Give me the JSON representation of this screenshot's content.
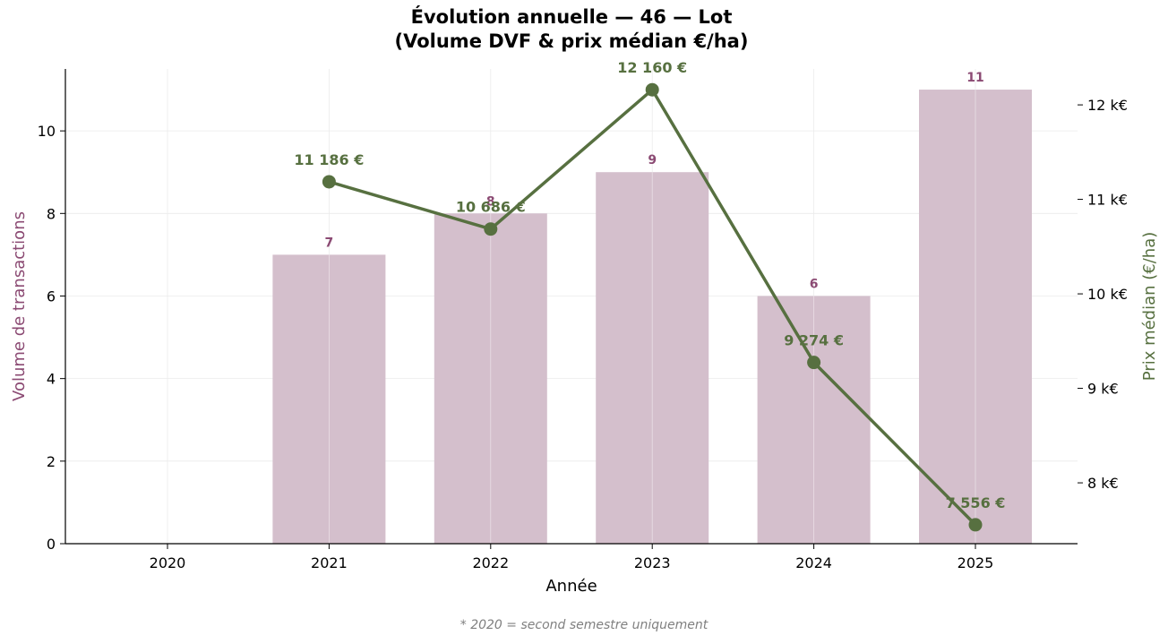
{
  "title_line1": "Évolution annuelle — 46 — Lot",
  "title_line2": "(Volume DVF & prix médian €/ha)",
  "footnote": "* 2020 = second semestre uniquement",
  "chart_data": {
    "type": "bar",
    "categories": [
      "2020",
      "2021",
      "2022",
      "2023",
      "2024",
      "2025"
    ],
    "xlabel": "Année",
    "ylabel": "Volume de transactions",
    "y2label": "Prix médian (€/ha)",
    "ylim": [
      0,
      11.5
    ],
    "yticks": [
      0,
      2,
      4,
      6,
      8,
      10
    ],
    "y2lim": [
      7356,
      12380
    ],
    "y2ticks": [
      8000,
      9000,
      10000,
      11000,
      12000
    ],
    "y2ticklabels": [
      "8 k€",
      "9 k€",
      "10 k€",
      "11 k€",
      "12 k€"
    ],
    "grid": true,
    "series": [
      {
        "kind": "bar",
        "axis": "left",
        "values": [
          null,
          7,
          8,
          9,
          6,
          11
        ],
        "labels": [
          "",
          "7",
          "8",
          "9",
          "6",
          "11"
        ]
      },
      {
        "kind": "line",
        "axis": "right",
        "values": [
          null,
          11186,
          10686,
          12160,
          9274,
          7556
        ],
        "labels": [
          "",
          "11 186 €",
          "10 686 €",
          "12 160 €",
          "9 274 €",
          "7 556 €"
        ]
      }
    ],
    "colors": {
      "bar": "#d4bfcc",
      "bar_label": "#8b4a73",
      "line": "#577040",
      "left_axis_title": "#8b4a73",
      "right_axis_title": "#577040"
    }
  }
}
